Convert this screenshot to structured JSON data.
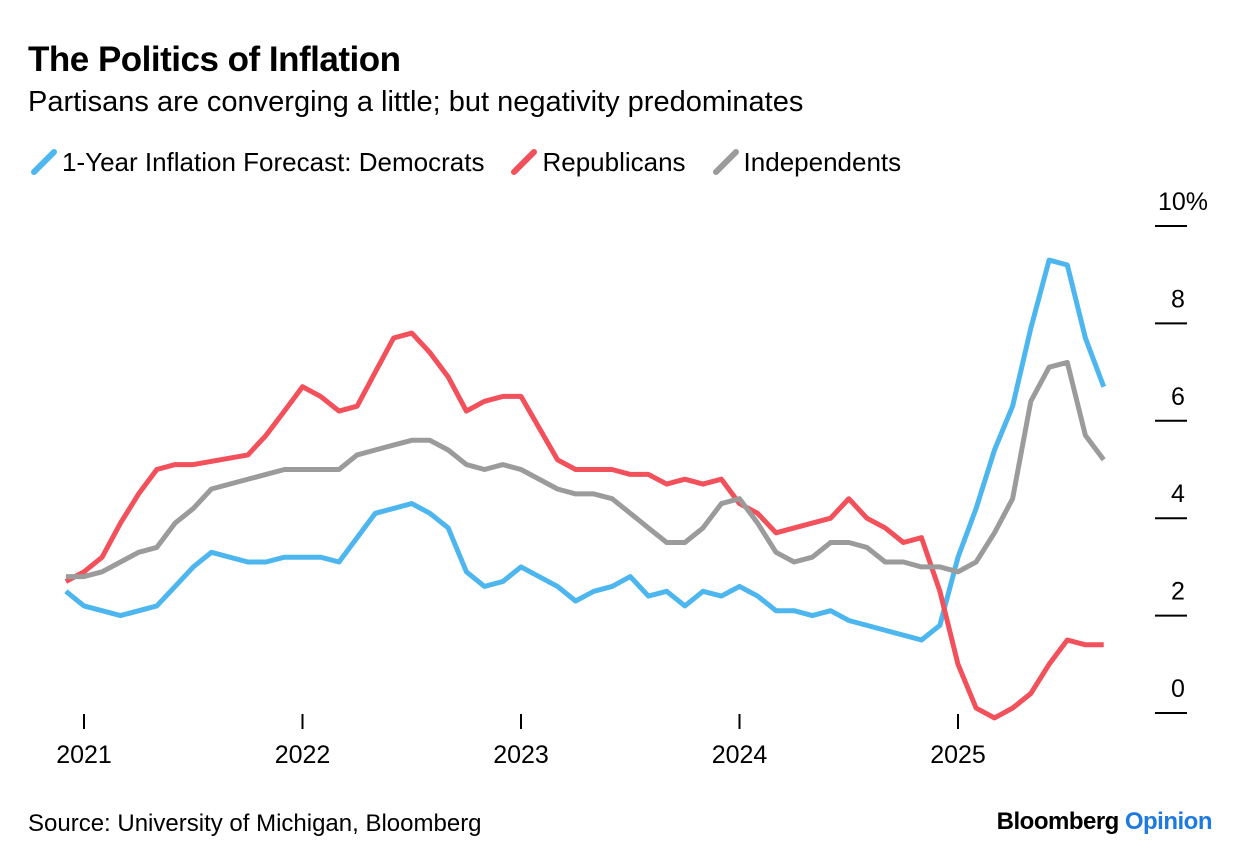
{
  "chart_data": {
    "type": "line",
    "title": "The Politics of Inflation",
    "subtitle": "Partisans are converging a little; but negativity predominates",
    "ylim": [
      0,
      10
    ],
    "y_ticks": [
      0,
      2,
      4,
      6,
      8,
      10
    ],
    "y_tick_labels": [
      "0",
      "2",
      "4",
      "6",
      "8",
      "10%"
    ],
    "xlim": [
      2020.9,
      2025.7
    ],
    "x_ticks": [
      2021,
      2022,
      2023,
      2024,
      2025
    ],
    "x_tick_labels": [
      "2021",
      "2022",
      "2023",
      "2024",
      "2025"
    ],
    "legend_position": "top-left",
    "grid": false,
    "series": [
      {
        "name": "1-Year Inflation Forecast: Democrats",
        "color": "#4db6ef",
        "x": [
          2020.917,
          2021.0,
          2021.167,
          2021.333,
          2021.417,
          2021.5,
          2021.583,
          2021.75,
          2021.833,
          2021.917,
          2022.083,
          2022.167,
          2022.333,
          2022.5,
          2022.583,
          2022.667,
          2022.75,
          2022.833,
          2022.917,
          2023.0,
          2023.167,
          2023.25,
          2023.333,
          2023.417,
          2023.5,
          2023.583,
          2023.667,
          2023.75,
          2023.833,
          2023.917,
          2024.0,
          2024.083,
          2024.167,
          2024.25,
          2024.333,
          2024.417,
          2024.5,
          2024.833,
          2024.917,
          2025.0,
          2025.083,
          2025.167,
          2025.25,
          2025.333,
          2025.417,
          2025.5,
          2025.583,
          2025.667
        ],
        "values": [
          2.5,
          2.2,
          2.0,
          2.2,
          2.6,
          3.0,
          3.3,
          3.1,
          3.1,
          3.2,
          3.2,
          3.1,
          4.1,
          4.3,
          4.1,
          3.8,
          2.9,
          2.6,
          2.7,
          3.0,
          2.6,
          2.3,
          2.5,
          2.6,
          2.8,
          2.4,
          2.5,
          2.2,
          2.5,
          2.4,
          2.6,
          2.4,
          2.1,
          2.1,
          2.0,
          2.1,
          1.9,
          1.5,
          1.8,
          3.2,
          4.2,
          5.4,
          6.3,
          7.9,
          9.3,
          9.2,
          7.7,
          6.7
        ]
      },
      {
        "name": "Republicans",
        "color": "#f2505a",
        "x": [
          2020.917,
          2021.0,
          2021.083,
          2021.167,
          2021.25,
          2021.333,
          2021.417,
          2021.5,
          2021.75,
          2021.833,
          2021.917,
          2022.0,
          2022.083,
          2022.167,
          2022.25,
          2022.333,
          2022.417,
          2022.5,
          2022.583,
          2022.667,
          2022.75,
          2022.833,
          2022.917,
          2023.0,
          2023.167,
          2023.25,
          2023.333,
          2023.417,
          2023.5,
          2023.583,
          2023.667,
          2023.75,
          2023.833,
          2023.917,
          2024.0,
          2024.083,
          2024.167,
          2024.417,
          2024.5,
          2024.583,
          2024.667,
          2024.75,
          2024.833,
          2024.917,
          2025.0,
          2025.083,
          2025.167,
          2025.25,
          2025.333,
          2025.417,
          2025.5,
          2025.583,
          2025.667
        ],
        "values": [
          2.7,
          2.9,
          3.2,
          3.9,
          4.5,
          5.0,
          5.1,
          5.1,
          5.3,
          5.7,
          6.2,
          6.7,
          6.5,
          6.2,
          6.3,
          7.0,
          7.7,
          7.8,
          7.4,
          6.9,
          6.2,
          6.4,
          6.5,
          6.5,
          5.2,
          5.0,
          5.0,
          5.0,
          4.9,
          4.9,
          4.7,
          4.8,
          4.7,
          4.8,
          4.3,
          4.1,
          3.7,
          4.0,
          4.4,
          4.0,
          3.8,
          3.5,
          3.6,
          2.5,
          1.0,
          0.1,
          -0.1,
          0.1,
          0.4,
          1.0,
          1.5,
          1.4,
          1.4
        ]
      },
      {
        "name": "Independents",
        "color": "#9b9b9b",
        "x": [
          2020.917,
          2021.0,
          2021.083,
          2021.167,
          2021.25,
          2021.333,
          2021.417,
          2021.5,
          2021.583,
          2021.833,
          2021.917,
          2022.0,
          2022.083,
          2022.167,
          2022.25,
          2022.333,
          2022.417,
          2022.5,
          2022.583,
          2022.667,
          2022.75,
          2022.833,
          2022.917,
          2023.0,
          2023.167,
          2023.25,
          2023.333,
          2023.417,
          2023.5,
          2023.583,
          2023.667,
          2023.75,
          2023.833,
          2023.917,
          2024.0,
          2024.083,
          2024.167,
          2024.25,
          2024.333,
          2024.417,
          2024.5,
          2024.583,
          2024.667,
          2024.75,
          2024.833,
          2024.917,
          2025.0,
          2025.083,
          2025.167,
          2025.25,
          2025.333,
          2025.417,
          2025.5,
          2025.583,
          2025.667
        ],
        "values": [
          2.8,
          2.8,
          2.9,
          3.1,
          3.3,
          3.4,
          3.9,
          4.2,
          4.6,
          4.9,
          5.0,
          5.0,
          5.0,
          5.0,
          5.3,
          5.4,
          5.5,
          5.6,
          5.6,
          5.4,
          5.1,
          5.0,
          5.1,
          5.0,
          4.6,
          4.5,
          4.5,
          4.4,
          4.1,
          3.8,
          3.5,
          3.5,
          3.8,
          4.3,
          4.4,
          3.9,
          3.3,
          3.1,
          3.2,
          3.5,
          3.5,
          3.4,
          3.1,
          3.1,
          3.0,
          3.0,
          2.9,
          3.1,
          3.7,
          4.4,
          6.4,
          7.1,
          7.2,
          5.7,
          5.2
        ]
      }
    ],
    "source": "Source: University of Michigan, Bloomberg"
  },
  "brand": {
    "name": "Bloomberg",
    "suffix": "Opinion",
    "suffix_color": "#1e7ae0"
  }
}
